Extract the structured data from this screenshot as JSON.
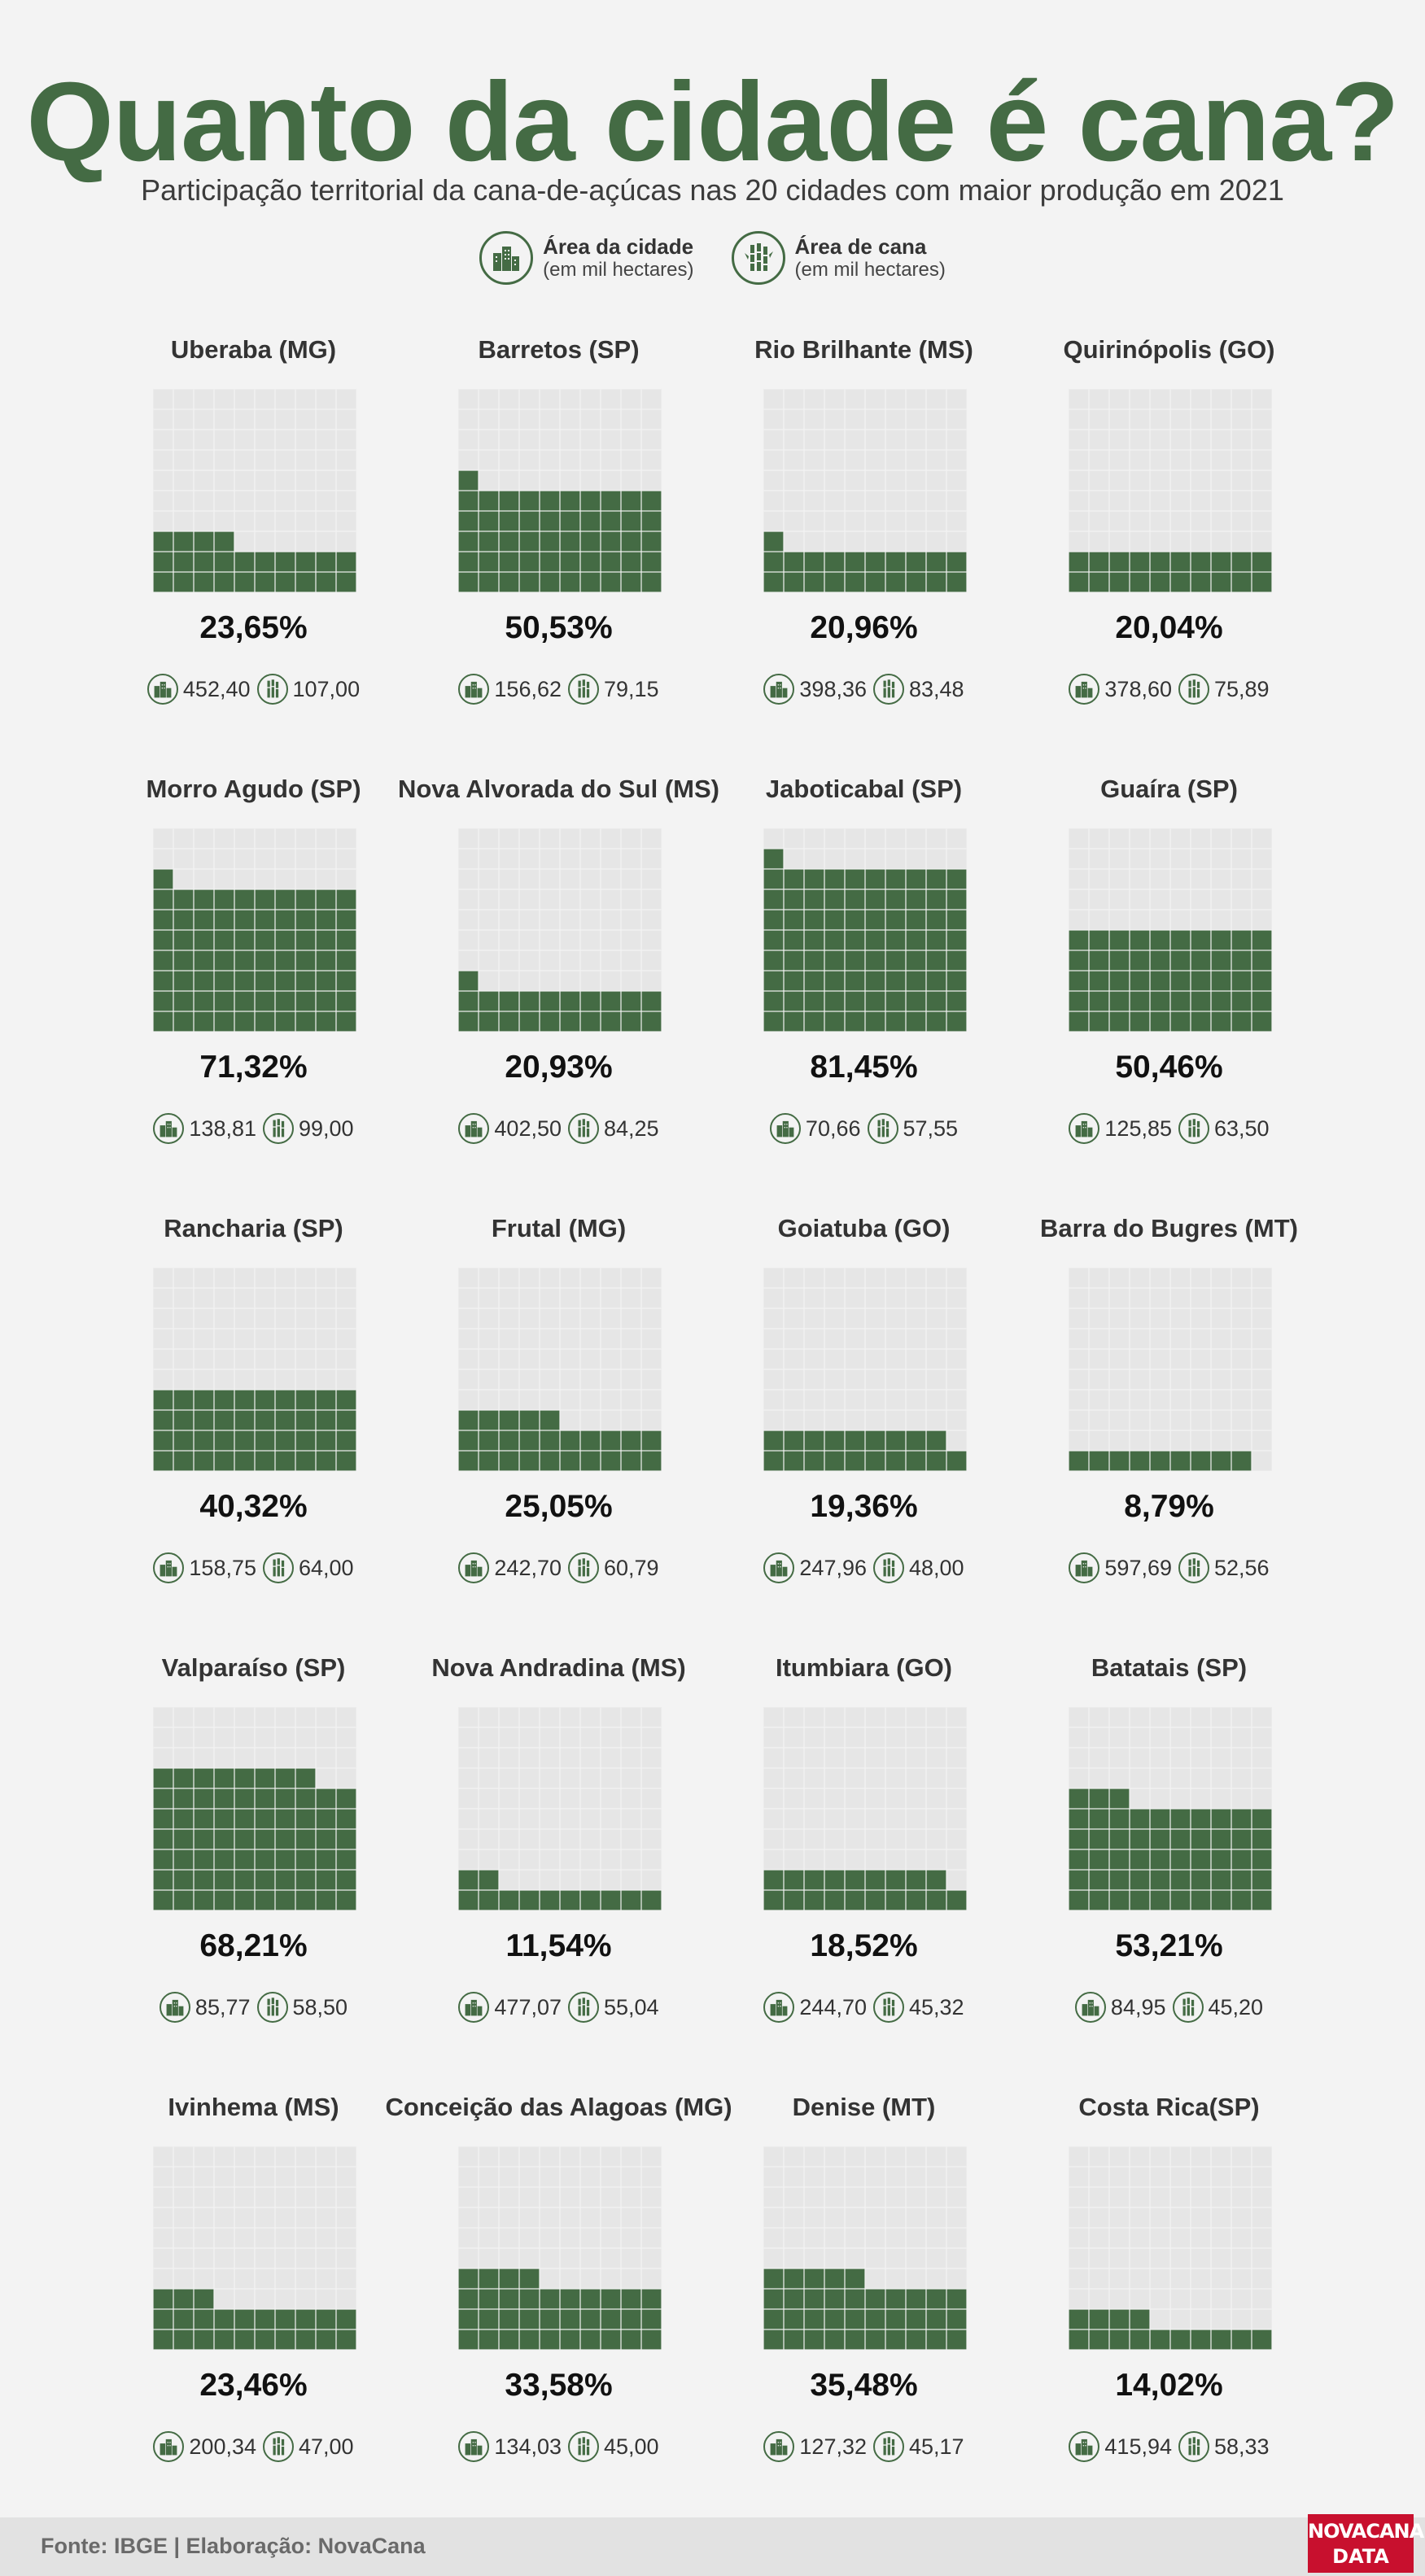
{
  "header": {
    "title": "Quanto da cidade é cana?",
    "subtitle": "Participação territorial da cana-de-açúcas nas 20 cidades com maior produção em 2021"
  },
  "legend": {
    "city": {
      "title": "Área da cidade",
      "sub": "(em mil hectares)",
      "icon": "city-buildings-icon"
    },
    "cane": {
      "title": "Área de cana",
      "sub": "(em mil hectares)",
      "icon": "sugarcane-icon"
    }
  },
  "colors": {
    "accent": "#446b44",
    "cell_empty": "#e6e6e6",
    "cell_filled": "#446b44"
  },
  "chart_data": {
    "type": "waffle",
    "cells_per_panel": 100,
    "cities": [
      {
        "name": "Uberaba (MG)",
        "pct_label": "23,65%",
        "pct": 23.65,
        "city_area": "452,40",
        "cane_area": "107,00"
      },
      {
        "name": "Barretos (SP)",
        "pct_label": "50,53%",
        "pct": 50.53,
        "city_area": "156,62",
        "cane_area": "79,15"
      },
      {
        "name": "Rio Brilhante (MS)",
        "pct_label": "20,96%",
        "pct": 20.96,
        "city_area": "398,36",
        "cane_area": "83,48"
      },
      {
        "name": "Quirinópolis (GO)",
        "pct_label": "20,04%",
        "pct": 20.04,
        "city_area": "378,60",
        "cane_area": "75,89"
      },
      {
        "name": "Morro Agudo (SP)",
        "pct_label": "71,32%",
        "pct": 71.32,
        "city_area": "138,81",
        "cane_area": "99,00"
      },
      {
        "name": "Nova Alvorada do Sul (MS)",
        "pct_label": "20,93%",
        "pct": 20.93,
        "city_area": "402,50",
        "cane_area": "84,25"
      },
      {
        "name": "Jaboticabal (SP)",
        "pct_label": "81,45%",
        "pct": 81.45,
        "city_area": "70,66",
        "cane_area": "57,55"
      },
      {
        "name": "Guaíra (SP)",
        "pct_label": "50,46%",
        "pct": 50.46,
        "city_area": "125,85",
        "cane_area": "63,50"
      },
      {
        "name": "Rancharia (SP)",
        "pct_label": "40,32%",
        "pct": 40.32,
        "city_area": "158,75",
        "cane_area": "64,00"
      },
      {
        "name": "Frutal (MG)",
        "pct_label": "25,05%",
        "pct": 25.05,
        "city_area": "242,70",
        "cane_area": "60,79"
      },
      {
        "name": "Goiatuba (GO)",
        "pct_label": "19,36%",
        "pct": 19.36,
        "city_area": "247,96",
        "cane_area": "48,00"
      },
      {
        "name": "Barra do Bugres (MT)",
        "pct_label": "8,79%",
        "pct": 8.79,
        "city_area": "597,69",
        "cane_area": "52,56"
      },
      {
        "name": "Valparaíso (SP)",
        "pct_label": "68,21%",
        "pct": 68.21,
        "city_area": "85,77",
        "cane_area": "58,50"
      },
      {
        "name": "Nova Andradina (MS)",
        "pct_label": "11,54%",
        "pct": 11.54,
        "city_area": "477,07",
        "cane_area": "55,04"
      },
      {
        "name": "Itumbiara (GO)",
        "pct_label": "18,52%",
        "pct": 18.52,
        "city_area": "244,70",
        "cane_area": "45,32"
      },
      {
        "name": "Batatais (SP)",
        "pct_label": "53,21%",
        "pct": 53.21,
        "city_area": "84,95",
        "cane_area": "45,20"
      },
      {
        "name": "Ivinhema (MS)",
        "pct_label": "23,46%",
        "pct": 23.46,
        "city_area": "200,34",
        "cane_area": "47,00"
      },
      {
        "name": "Conceição das Alagoas (MG)",
        "pct_label": "33,58%",
        "pct": 33.58,
        "city_area": "134,03",
        "cane_area": "45,00"
      },
      {
        "name": "Denise (MT)",
        "pct_label": "35,48%",
        "pct": 35.48,
        "city_area": "127,32",
        "cane_area": "45,17"
      },
      {
        "name": "Costa Rica(SP)",
        "pct_label": "14,02%",
        "pct": 14.02,
        "city_area": "415,94",
        "cane_area": "58,33"
      }
    ]
  },
  "footer": {
    "source": "Fonte: IBGE | Elaboração: NovaCana",
    "logo_line1": "NOVACANA",
    "logo_line2": "DATA"
  }
}
